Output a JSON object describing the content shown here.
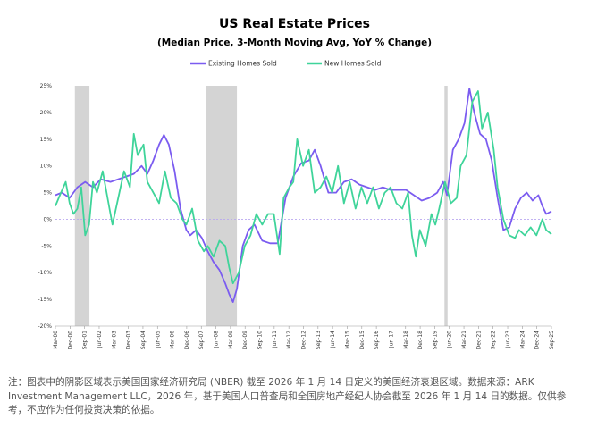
{
  "chart_data": {
    "type": "line",
    "title": "US Real Estate Prices",
    "subtitle": "(Median Price, 3-Month Moving Avg, YoY % Change)",
    "xlabel": "",
    "ylabel": "",
    "ylim": [
      -20,
      25
    ],
    "yticks": [
      -20,
      -15,
      -10,
      -5,
      0,
      5,
      10,
      15,
      20,
      25
    ],
    "ytick_labels": [
      "-20%",
      "-15%",
      "-10%",
      "-5%",
      "0%",
      "5%",
      "10%",
      "15%",
      "20%",
      "25%"
    ],
    "xlim": [
      2000.17,
      2025.67
    ],
    "xtick_labels": [
      "Mar-00",
      "Dec-00",
      "Sep-01",
      "Jun-02",
      "Mar-03",
      "Dec-03",
      "Sep-04",
      "Jun-05",
      "Mar-06",
      "Dec-06",
      "Sep-07",
      "Jun-08",
      "Mar-09",
      "Dec-09",
      "Sep-10",
      "Jun-11",
      "Mar-12",
      "Dec-12",
      "Sep-13",
      "Jun-14",
      "Mar-15",
      "Dec-15",
      "Sep-16",
      "Jun-17",
      "Mar-18",
      "Dec-18",
      "Sep-19",
      "Jun-20",
      "Mar-21",
      "Dec-21",
      "Sep-22",
      "Jun-23",
      "Mar-24",
      "Dec-24",
      "Sep-25"
    ],
    "recessions": [
      [
        2001.17,
        2001.92
      ],
      [
        2007.92,
        2009.5
      ],
      [
        2020.17,
        2020.33
      ]
    ],
    "legend_position": "top-center",
    "grid": false,
    "series": [
      {
        "name": "Existing Homes Sold",
        "color": "#7b5cf0",
        "points": [
          [
            2000.17,
            4.5
          ],
          [
            2000.5,
            5
          ],
          [
            2000.9,
            4
          ],
          [
            2001.3,
            6
          ],
          [
            2001.7,
            7
          ],
          [
            2002.1,
            6
          ],
          [
            2002.5,
            7.5
          ],
          [
            2003.0,
            7
          ],
          [
            2003.4,
            7.5
          ],
          [
            2003.8,
            8
          ],
          [
            2004.2,
            8.5
          ],
          [
            2004.6,
            10
          ],
          [
            2004.9,
            8.5
          ],
          [
            2005.2,
            11
          ],
          [
            2005.5,
            14
          ],
          [
            2005.75,
            15.8
          ],
          [
            2006.0,
            14
          ],
          [
            2006.3,
            9
          ],
          [
            2006.6,
            2
          ],
          [
            2006.9,
            -2
          ],
          [
            2007.1,
            -3
          ],
          [
            2007.4,
            -2
          ],
          [
            2007.7,
            -3.5
          ],
          [
            2008.0,
            -6
          ],
          [
            2008.3,
            -8
          ],
          [
            2008.6,
            -9.5
          ],
          [
            2008.9,
            -12
          ],
          [
            2009.1,
            -14
          ],
          [
            2009.3,
            -15.5
          ],
          [
            2009.5,
            -13
          ],
          [
            2009.8,
            -5
          ],
          [
            2010.1,
            -2
          ],
          [
            2010.4,
            -1
          ],
          [
            2010.8,
            -4
          ],
          [
            2011.2,
            -4.5
          ],
          [
            2011.6,
            -4.5
          ],
          [
            2012.0,
            4
          ],
          [
            2012.4,
            8
          ],
          [
            2012.8,
            10.5
          ],
          [
            2013.2,
            11
          ],
          [
            2013.5,
            13
          ],
          [
            2013.8,
            10
          ],
          [
            2014.2,
            5
          ],
          [
            2014.6,
            5
          ],
          [
            2015.0,
            7
          ],
          [
            2015.4,
            7.5
          ],
          [
            2015.8,
            6.5
          ],
          [
            2016.2,
            6
          ],
          [
            2016.6,
            5.5
          ],
          [
            2017.0,
            6
          ],
          [
            2017.4,
            5.5
          ],
          [
            2017.8,
            5.5
          ],
          [
            2018.2,
            5.5
          ],
          [
            2018.6,
            4.5
          ],
          [
            2019.0,
            3.5
          ],
          [
            2019.4,
            4
          ],
          [
            2019.8,
            5
          ],
          [
            2020.1,
            7
          ],
          [
            2020.3,
            4.5
          ],
          [
            2020.6,
            13
          ],
          [
            2020.9,
            15
          ],
          [
            2021.2,
            18
          ],
          [
            2021.45,
            24.5
          ],
          [
            2021.7,
            20
          ],
          [
            2022.0,
            16
          ],
          [
            2022.3,
            15
          ],
          [
            2022.6,
            11
          ],
          [
            2022.9,
            4
          ],
          [
            2023.2,
            -2
          ],
          [
            2023.5,
            -1.5
          ],
          [
            2023.8,
            2
          ],
          [
            2024.1,
            4
          ],
          [
            2024.4,
            5
          ],
          [
            2024.7,
            3.5
          ],
          [
            2025.0,
            4.5
          ],
          [
            2025.2,
            2.5
          ],
          [
            2025.4,
            1
          ],
          [
            2025.67,
            1.5
          ]
        ]
      },
      {
        "name": "New Homes Sold",
        "color": "#3fd49a",
        "points": [
          [
            2000.17,
            2.5
          ],
          [
            2000.4,
            4.5
          ],
          [
            2000.7,
            7
          ],
          [
            2000.9,
            3
          ],
          [
            2001.1,
            1
          ],
          [
            2001.3,
            2
          ],
          [
            2001.5,
            6
          ],
          [
            2001.7,
            -3
          ],
          [
            2001.9,
            -1
          ],
          [
            2002.1,
            7
          ],
          [
            2002.3,
            5
          ],
          [
            2002.6,
            9
          ],
          [
            2002.9,
            3
          ],
          [
            2003.1,
            -1
          ],
          [
            2003.4,
            4
          ],
          [
            2003.7,
            9
          ],
          [
            2004.0,
            6
          ],
          [
            2004.2,
            16
          ],
          [
            2004.4,
            12
          ],
          [
            2004.7,
            14
          ],
          [
            2004.9,
            7
          ],
          [
            2005.2,
            5
          ],
          [
            2005.5,
            3
          ],
          [
            2005.8,
            9
          ],
          [
            2006.1,
            4
          ],
          [
            2006.4,
            3
          ],
          [
            2006.7,
            0
          ],
          [
            2006.9,
            -1
          ],
          [
            2007.2,
            2
          ],
          [
            2007.5,
            -4
          ],
          [
            2007.8,
            -6
          ],
          [
            2008.0,
            -5
          ],
          [
            2008.3,
            -7
          ],
          [
            2008.6,
            -4
          ],
          [
            2008.9,
            -5
          ],
          [
            2009.1,
            -9
          ],
          [
            2009.3,
            -12
          ],
          [
            2009.6,
            -10
          ],
          [
            2009.9,
            -5
          ],
          [
            2010.2,
            -3
          ],
          [
            2010.5,
            1
          ],
          [
            2010.8,
            -1
          ],
          [
            2011.1,
            1
          ],
          [
            2011.4,
            1
          ],
          [
            2011.7,
            -6.5
          ],
          [
            2011.9,
            4
          ],
          [
            2012.2,
            6
          ],
          [
            2012.4,
            7
          ],
          [
            2012.6,
            15
          ],
          [
            2012.9,
            10
          ],
          [
            2013.2,
            13
          ],
          [
            2013.5,
            5
          ],
          [
            2013.8,
            6
          ],
          [
            2014.1,
            8
          ],
          [
            2014.4,
            5
          ],
          [
            2014.7,
            10
          ],
          [
            2015.0,
            3
          ],
          [
            2015.3,
            7
          ],
          [
            2015.6,
            2
          ],
          [
            2015.9,
            6
          ],
          [
            2016.2,
            3
          ],
          [
            2016.5,
            6
          ],
          [
            2016.8,
            2
          ],
          [
            2017.1,
            5
          ],
          [
            2017.4,
            6
          ],
          [
            2017.7,
            3
          ],
          [
            2018.0,
            2
          ],
          [
            2018.3,
            5
          ],
          [
            2018.5,
            -3
          ],
          [
            2018.7,
            -7
          ],
          [
            2018.9,
            -2
          ],
          [
            2019.2,
            -5
          ],
          [
            2019.5,
            1
          ],
          [
            2019.7,
            -1
          ],
          [
            2019.9,
            2
          ],
          [
            2020.2,
            7
          ],
          [
            2020.5,
            3
          ],
          [
            2020.8,
            4
          ],
          [
            2021.0,
            10
          ],
          [
            2021.3,
            12
          ],
          [
            2021.6,
            22
          ],
          [
            2021.9,
            24
          ],
          [
            2022.1,
            17
          ],
          [
            2022.4,
            20
          ],
          [
            2022.7,
            13
          ],
          [
            2022.9,
            6
          ],
          [
            2023.2,
            0
          ],
          [
            2023.5,
            -3
          ],
          [
            2023.8,
            -3.5
          ],
          [
            2024.0,
            -2
          ],
          [
            2024.3,
            -3
          ],
          [
            2024.6,
            -1.5
          ],
          [
            2024.9,
            -3
          ],
          [
            2025.2,
            0
          ],
          [
            2025.4,
            -2
          ],
          [
            2025.67,
            -2.8
          ]
        ]
      }
    ]
  },
  "footnote": "注：图表中的阴影区域表示美国国家经济研究局 (NBER) 截至 2026 年 1 月 14 日定义的美国经济衰退区域。数据来源：ARK Investment Management LLC，2026 年，基于美国人口普查局和全国房地产经纪人协会截至 2026 年 1 月 14 日的数据。仅供参考，不应作为任何投资决策的依据。"
}
